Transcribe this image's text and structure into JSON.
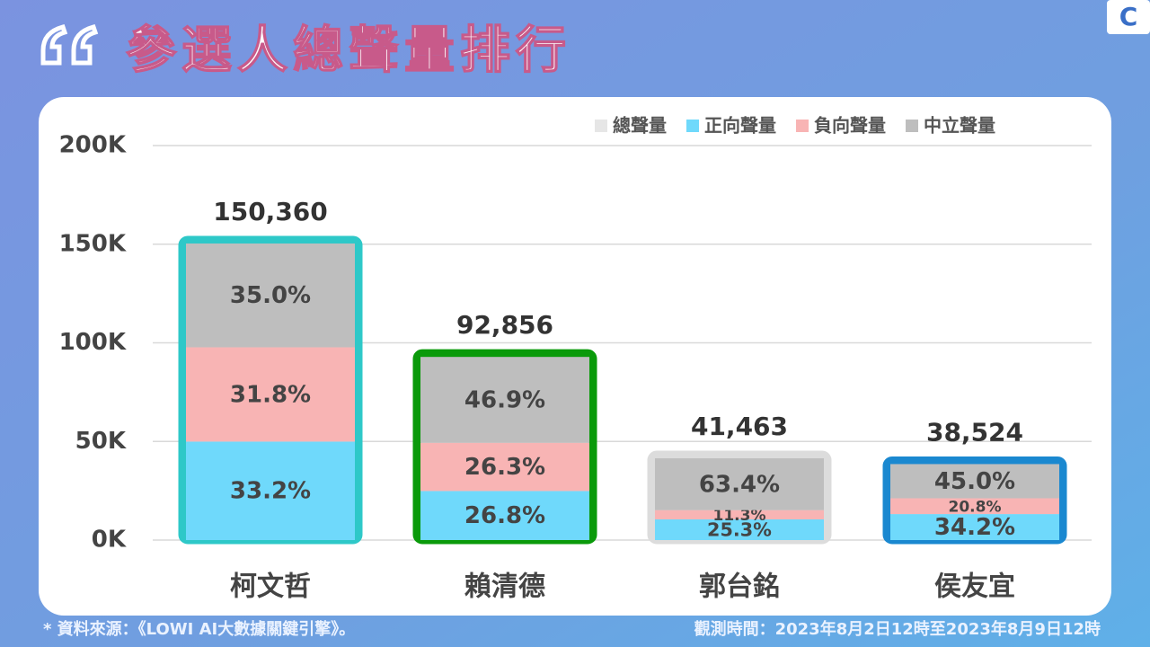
{
  "chart_data": {
    "type": "bar",
    "title": "參選人總聲量排行",
    "categories": [
      "柯文哲",
      "賴清德",
      "郭台銘",
      "侯友宜"
    ],
    "series": [
      {
        "name": "總聲量",
        "color": "#e6e6e6",
        "values": [
          150360,
          92856,
          41463,
          38524
        ],
        "value_labels": [
          "150,360",
          "92,856",
          "41,463",
          "38,524"
        ]
      },
      {
        "name": "正向聲量",
        "color": "#6fd9fb",
        "values": [
          33.2,
          26.8,
          25.3,
          34.2
        ],
        "value_labels": [
          "33.2%",
          "26.8%",
          "25.3%",
          "34.2%"
        ]
      },
      {
        "name": "負向聲量",
        "color": "#f8b4b4",
        "values": [
          31.8,
          26.3,
          11.3,
          20.8
        ],
        "value_labels": [
          "31.8%",
          "26.3%",
          "11.3%",
          "20.8%"
        ]
      },
      {
        "name": "中立聲量",
        "color": "#bebebe",
        "values": [
          35.0,
          46.9,
          63.4,
          45.0
        ],
        "value_labels": [
          "35.0%",
          "46.9%",
          "63.4%",
          "45.0%"
        ]
      }
    ],
    "outline_colors": [
      "#2ec8c8",
      "#0a9a0a",
      "#dcdcdc",
      "#1a88d0"
    ],
    "ylim": [
      0,
      200000
    ],
    "yticks": [
      {
        "value": 0,
        "label": "0K"
      },
      {
        "value": 50000,
        "label": "50K"
      },
      {
        "value": 100000,
        "label": "100K"
      },
      {
        "value": 150000,
        "label": "150K"
      },
      {
        "value": 200000,
        "label": "200K"
      }
    ],
    "grid": true,
    "legend": "top-right"
  },
  "logo": "C",
  "footer": {
    "source": "* 資料來源：《LOWI AI大數據關鍵引擎》。",
    "period": "觀測時間：2023年8月2日12時至2023年8月9日12時"
  }
}
